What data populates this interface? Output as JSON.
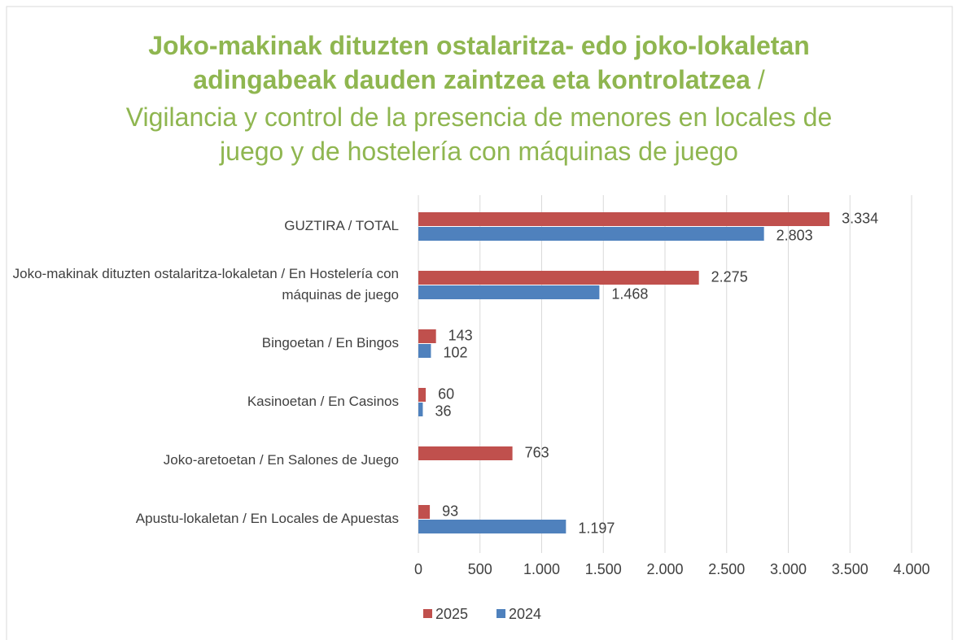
{
  "chart_data": {
    "type": "barh",
    "title": [
      "Joko-makinak dituzten ostalaritza- edo joko-lokaletan",
      "adingabeak dauden zaintzea eta kontrolatzea"
    ],
    "subtitle": [
      "/",
      "Vigilancia y control de la presencia de menores en locales de",
      "juego y de hostelería con máquinas de juego"
    ],
    "categories": [
      "GUZTIRA / TOTAL",
      "Joko-makinak dituzten ostalaritza-lokaletan / En Hostelería con máquinas de juego",
      "Bingoetan / En Bingos",
      "Kasinoetan / En Casinos",
      "Joko-aretoetan / En Salones de Juego",
      "Apustu-lokaletan / En Locales de Apuestas"
    ],
    "series": [
      {
        "name": "2025",
        "color": "#c0504d",
        "values": [
          3334,
          2275,
          143,
          60,
          763,
          93
        ],
        "value_labels": [
          "3.334",
          "2.275",
          "143",
          "60",
          "763",
          "93"
        ]
      },
      {
        "name": "2024",
        "color": "#4f81bd",
        "values": [
          2803,
          1468,
          102,
          36,
          null,
          1197
        ],
        "value_labels": [
          "2.803",
          "1.468",
          "102",
          "36",
          null,
          "1.197"
        ]
      }
    ],
    "xlim": [
      0,
      4000
    ],
    "xticks": [
      0,
      {
        "value": 500,
        "label": "500"
      },
      {
        "value": 1000,
        "label": "1.000"
      },
      {
        "value": 1500,
        "label": "1.500"
      },
      {
        "value": 2000,
        "label": "2.000"
      },
      {
        "value": 2500,
        "label": "2.500"
      },
      {
        "value": 3000,
        "label": "3.000"
      },
      {
        "value": 3500,
        "label": "3.500"
      },
      {
        "value": 4000,
        "label": "4.000"
      }
    ],
    "grid": true,
    "legend": "bottom"
  }
}
